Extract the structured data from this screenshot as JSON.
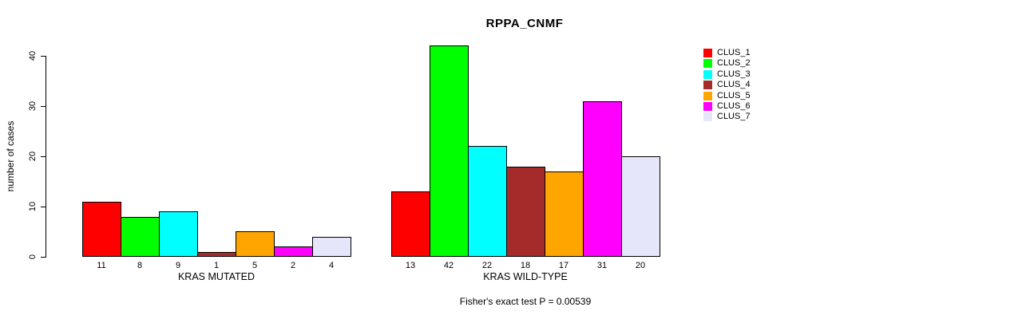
{
  "chart_data": {
    "type": "bar",
    "title": "RPPA_CNMF",
    "ylabel": "number of cases",
    "ylim": [
      0,
      40
    ],
    "yticks": [
      0,
      10,
      20,
      30,
      40
    ],
    "grid": false,
    "legend_position": "right",
    "bar_border_color": "#000000",
    "clusters": [
      {
        "name": "CLUS_1",
        "color": "#FF0000"
      },
      {
        "name": "CLUS_2",
        "color": "#00FF00"
      },
      {
        "name": "CLUS_3",
        "color": "#00FFFF"
      },
      {
        "name": "CLUS_4",
        "color": "#A52A2A"
      },
      {
        "name": "CLUS_5",
        "color": "#FFA500"
      },
      {
        "name": "CLUS_6",
        "color": "#FF00FF"
      },
      {
        "name": "CLUS_7",
        "color": "#E6E6FA"
      }
    ],
    "categories": [
      "KRAS MUTATED",
      "KRAS WILD-TYPE"
    ],
    "groups": [
      {
        "label": "KRAS MUTATED",
        "values": [
          11,
          8,
          9,
          1,
          5,
          2,
          4
        ]
      },
      {
        "label": "KRAS WILD-TYPE",
        "values": [
          13,
          42,
          22,
          18,
          17,
          31,
          20
        ]
      }
    ],
    "footer": "Fisher's exact test P = 0.00539"
  }
}
